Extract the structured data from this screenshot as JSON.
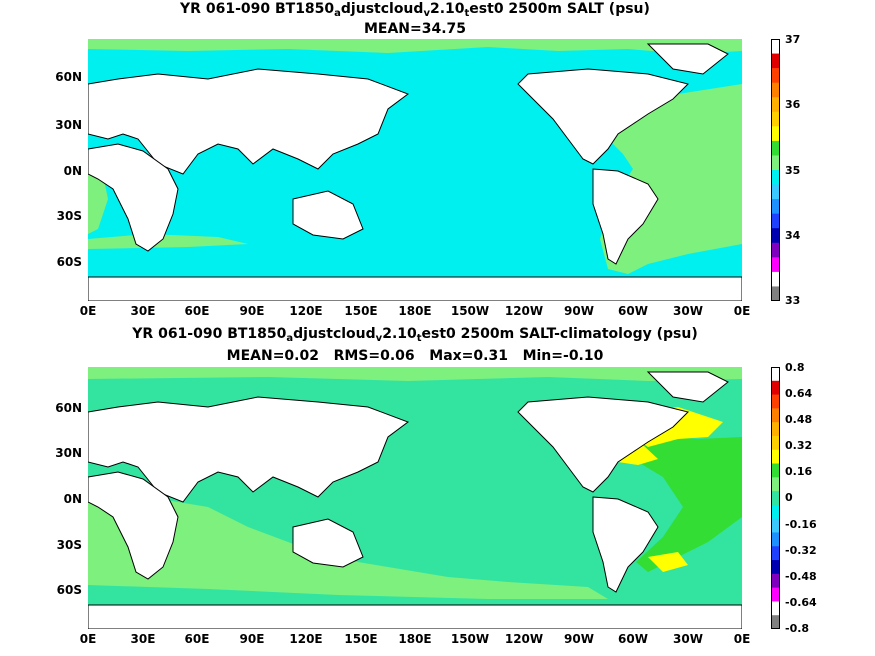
{
  "colors": {
    "ocean_top": "#00f0f0",
    "ocean_bottom": "#33e3a0",
    "shelf_green": "#7ef07e",
    "bright_green": "#33dd33",
    "yellow": "#ffff00",
    "land": "#ffffff",
    "coast": "#000000"
  },
  "top": {
    "title_pre": "YR 061-090 BT1850",
    "title_sub1": "a",
    "title_mid1": "djustcloud",
    "title_sub2": "v",
    "title_mid2": "2.10",
    "title_sub3": "t",
    "title_post": "est0 2500m SALT (psu)",
    "stats": "MEAN=34.75",
    "colorbar_labels": [
      "37",
      "36",
      "35",
      "34",
      "33"
    ],
    "colorbar_colors": [
      "#ffffff",
      "#e00000",
      "#ff4000",
      "#ff8000",
      "#ffb000",
      "#ffd000",
      "#ffff00",
      "#33dd33",
      "#7ef07e",
      "#00f0f0",
      "#3ac8ff",
      "#1e90ff",
      "#2040ff",
      "#0000b0",
      "#8000c0",
      "#ff00ff",
      "#ffffff",
      "#808080"
    ]
  },
  "bottom": {
    "title_pre": "YR 061-090 BT1850",
    "title_sub1": "a",
    "title_mid1": "djustcloud",
    "title_sub2": "v",
    "title_mid2": "2.10",
    "title_sub3": "t",
    "title_post": "est0 2500m SALT-climatology (psu)",
    "stats": "MEAN=0.02   RMS=0.06   Max=0.31   Min=-0.10",
    "colorbar_labels": [
      "0.8",
      "0.64",
      "0.48",
      "0.32",
      "0.16",
      "0",
      "-0.16",
      "-0.32",
      "-0.48",
      "-0.64",
      "-0.8"
    ],
    "colorbar_colors": [
      "#ffffff",
      "#e00000",
      "#ff4000",
      "#ff8000",
      "#ffb000",
      "#ffd000",
      "#ffff00",
      "#33dd33",
      "#7ef07e",
      "#33e3a0",
      "#00f0f0",
      "#3ac8ff",
      "#1e90ff",
      "#2040ff",
      "#0000b0",
      "#8000c0",
      "#ff00ff",
      "#ffffff",
      "#808080"
    ]
  },
  "lat_labels": [
    "60N",
    "30N",
    "0N",
    "30S",
    "60S"
  ],
  "lon_labels": [
    "0E",
    "30E",
    "60E",
    "90E",
    "120E",
    "150E",
    "180E",
    "150W",
    "120W",
    "90W",
    "60W",
    "30W",
    "0E"
  ]
}
